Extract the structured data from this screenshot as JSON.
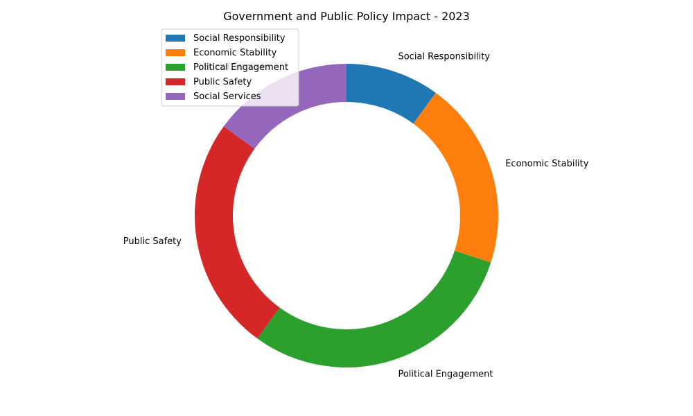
{
  "chart_data": {
    "type": "pie",
    "style": "donut",
    "title": "Government and Public Policy Impact - 2023",
    "categories": [
      "Social Responsibility",
      "Economic Stability",
      "Political Engagement",
      "Public Safety",
      "Social Services"
    ],
    "values": [
      10,
      20,
      30,
      25,
      15
    ],
    "colors": [
      "#1f77b4",
      "#ff7f0e",
      "#2ca02c",
      "#d62728",
      "#9467bd"
    ],
    "start_angle_deg": 90,
    "direction": "clockwise",
    "legend": {
      "placement": "upper-left",
      "entries": [
        "Social Responsibility",
        "Economic Stability",
        "Political Engagement",
        "Public Safety",
        "Social Services"
      ]
    },
    "slice_labels": [
      "Social Responsibility",
      "Economic Stability",
      "Political Engagement",
      "Public Safety",
      "Social Services"
    ]
  }
}
